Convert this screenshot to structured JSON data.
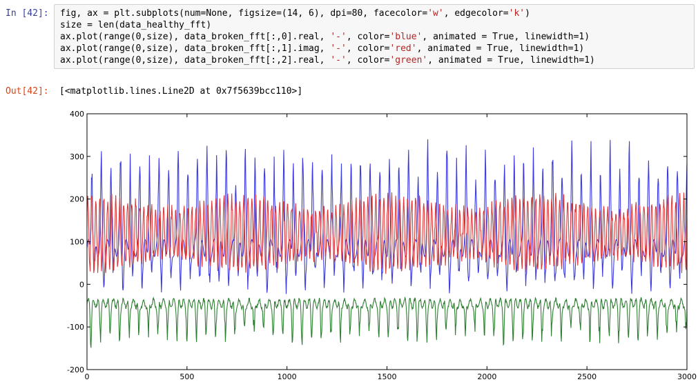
{
  "cell": {
    "in_prompt": "In [42]:",
    "out_prompt": "Out[42]:",
    "code_lines": [
      [
        {
          "t": "fig, ax = plt.subplots(num=None, figsize=(14, 6), dpi=80, facecolor="
        },
        {
          "t": "'w'",
          "s": 1
        },
        {
          "t": ", edgecolor="
        },
        {
          "t": "'k'",
          "s": 1
        },
        {
          "t": ")"
        }
      ],
      [
        {
          "t": "size = len(data_healthy_fft)"
        }
      ],
      [
        {
          "t": "ax.plot(range(0,size), data_broken_fft[:,0].real, "
        },
        {
          "t": "'-'",
          "s": 1
        },
        {
          "t": ", color="
        },
        {
          "t": "'blue'",
          "s": 1
        },
        {
          "t": ", animated = True, linewidth=1)"
        }
      ],
      [
        {
          "t": "ax.plot(range(0,size), data_broken_fft[:,1].imag, "
        },
        {
          "t": "'-'",
          "s": 1
        },
        {
          "t": ", color="
        },
        {
          "t": "'red'",
          "s": 1
        },
        {
          "t": ", animated = True, linewidth=1)"
        }
      ],
      [
        {
          "t": "ax.plot(range(0,size), data_broken_fft[:,2].real, "
        },
        {
          "t": "'-'",
          "s": 1
        },
        {
          "t": ", color="
        },
        {
          "t": "'green'",
          "s": 1
        },
        {
          "t": ", animated = True, linewidth=1)"
        }
      ]
    ],
    "output_text": "[<matplotlib.lines.Line2D at 0x7f5639bcc110>]"
  },
  "chart_data": {
    "type": "line",
    "xlim": [
      0,
      3000
    ],
    "ylim": [
      -200,
      400
    ],
    "x_ticks": [
      0,
      500,
      1000,
      1500,
      2000,
      2500,
      3000
    ],
    "y_ticks": [
      -200,
      -100,
      0,
      100,
      200,
      300,
      400
    ],
    "grid": false,
    "series": [
      {
        "color": "#3b3bdd",
        "approx": {
          "baseline": 85,
          "amplitude": 160,
          "period": 48,
          "x": [
            0,
            3000
          ]
        }
      },
      {
        "color": "#dd3b3b",
        "approx": {
          "baseline": 120,
          "amplitude": 75,
          "period": 20,
          "x": [
            0,
            3000
          ]
        }
      },
      {
        "color": "#2e7d32",
        "approx": {
          "baseline": -45,
          "amplitude": 55,
          "period": 48,
          "x": [
            0,
            3000
          ]
        }
      }
    ]
  }
}
